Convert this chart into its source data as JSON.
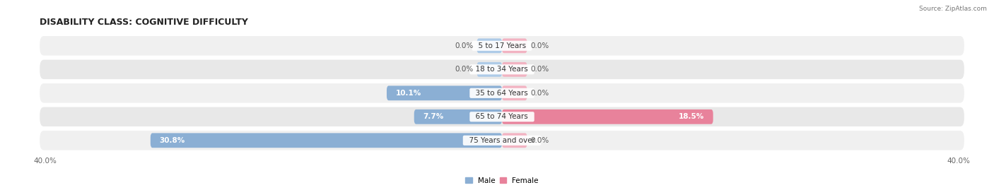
{
  "title": "DISABILITY CLASS: COGNITIVE DIFFICULTY",
  "source": "Source: ZipAtlas.com",
  "categories": [
    "5 to 17 Years",
    "18 to 34 Years",
    "35 to 64 Years",
    "65 to 74 Years",
    "75 Years and over"
  ],
  "male_values": [
    0.0,
    0.0,
    10.1,
    7.7,
    30.8
  ],
  "female_values": [
    0.0,
    0.0,
    0.0,
    18.5,
    0.0
  ],
  "max_val": 40.0,
  "male_color": "#8BAFD4",
  "female_color": "#E8829B",
  "male_color_light": "#AECBE8",
  "female_color_light": "#F2B3C2",
  "bar_bg_light": "#F0F0F0",
  "bar_bg_dark": "#E8E8E8",
  "bar_height": 0.62,
  "figsize": [
    14.06,
    2.69
  ],
  "dpi": 100,
  "title_fontsize": 9,
  "label_fontsize": 7.5,
  "tick_fontsize": 7.5,
  "text_color": "#333333",
  "value_label_color": "#555555"
}
